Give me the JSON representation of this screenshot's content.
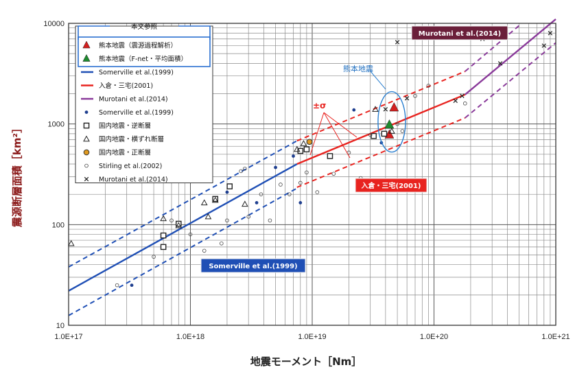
{
  "chart_data": {
    "type": "scatter",
    "xlabel": "地震モーメント［Nm］",
    "ylabel": "震源断層面積［km²］",
    "xscale": "log",
    "yscale": "log",
    "xlim": [
      1e+17,
      1e+21
    ],
    "ylim": [
      10,
      10000
    ],
    "xticks": [
      "1.0E+17",
      "1.0E+18",
      "1.0E+19",
      "1.0E+20",
      "1.0E+21"
    ],
    "yticks": [
      "10",
      "100",
      "1000",
      "10000"
    ],
    "grid": true,
    "legend_position": "top-left",
    "legend_title": "本文参照",
    "legend": [
      {
        "key": "kumamoto_a",
        "label": "熊本地震（震源過程解析）",
        "kind": "triangle",
        "color": "#d42020"
      },
      {
        "key": "kumamoto_b",
        "label": "熊本地震（F-net・平均面積）",
        "kind": "triangle",
        "color": "#1e8a2e"
      },
      {
        "key": "somerville_line",
        "label": "Somerville et al.(1999)",
        "kind": "line",
        "color": "#1f4fb5"
      },
      {
        "key": "irikura_line",
        "label": "入倉・三宅(2001)",
        "kind": "line",
        "color": "#e8231f"
      },
      {
        "key": "murotani_line",
        "label": "Murotani et al.(2014)",
        "kind": "line",
        "color": "#8a3a9a"
      },
      {
        "key": "somerville_pts",
        "label": "Somerville et al.(1999)",
        "kind": "dot",
        "color": "#1f3f8f"
      },
      {
        "key": "reverse",
        "label": "国内地震・逆断層",
        "kind": "square",
        "color": "#222222"
      },
      {
        "key": "strike",
        "label": "国内地震・横ずれ断層",
        "kind": "opentri",
        "color": "#222222"
      },
      {
        "key": "normal",
        "label": "国内地震・正断層",
        "kind": "orangecircle",
        "color": "#e09a20"
      },
      {
        "key": "stirling",
        "label": "Stirling et al.(2002)",
        "kind": "opencircle",
        "color": "#444444"
      },
      {
        "key": "murotani_pts",
        "label": "Murotani et al.(2014)",
        "kind": "cross",
        "color": "#222222"
      }
    ],
    "annotations": {
      "murotani": "Murotani et al.(2014)",
      "irikura": "入倉・三宅(2001)",
      "somerville": "Somerville et al.(1999)",
      "kumamoto": "熊本地震",
      "sigma": "±σ"
    },
    "lines": [
      {
        "name": "Somerville et al.(1999)",
        "color": "#1f4fb5",
        "style": "solid",
        "x": [
          1e+17,
          7.5e+18
        ],
        "y": [
          22,
          400
        ]
      },
      {
        "name": "Somerville +σ",
        "color": "#1f4fb5",
        "style": "dashed",
        "x": [
          1e+17,
          7.5e+18
        ],
        "y": [
          38,
          680
        ]
      },
      {
        "name": "Somerville -σ",
        "color": "#1f4fb5",
        "style": "dashed",
        "x": [
          1e+17,
          7.5e+18
        ],
        "y": [
          12.5,
          230
        ]
      },
      {
        "name": "入倉・三宅(2001)",
        "color": "#e8231f",
        "style": "solid",
        "x": [
          7.5e+18,
          1.8e+20
        ],
        "y": [
          400,
          1960
        ]
      },
      {
        "name": "入倉・三宅 +σ",
        "color": "#e8231f",
        "style": "dashed",
        "x": [
          7.5e+18,
          1.8e+20
        ],
        "y": [
          680,
          3330
        ]
      },
      {
        "name": "入倉・三宅 -σ",
        "color": "#e8231f",
        "style": "dashed",
        "x": [
          7.5e+18,
          1.8e+20
        ],
        "y": [
          235,
          1150
        ]
      },
      {
        "name": "Murotani et al.(2014)",
        "color": "#8a3a9a",
        "style": "solid",
        "x": [
          1.8e+20,
          1e+21
        ],
        "y": [
          1960,
          11000
        ]
      },
      {
        "name": "Murotani +σ",
        "color": "#8a3a9a",
        "style": "dashed",
        "x": [
          1.8e+20,
          5e+20
        ],
        "y": [
          3330,
          9500
        ]
      },
      {
        "name": "Murotani -σ",
        "color": "#8a3a9a",
        "style": "dashed",
        "x": [
          1.8e+20,
          1e+21
        ],
        "y": [
          1150,
          6400
        ]
      }
    ],
    "series": [
      {
        "name": "熊本地震（震源過程解析）",
        "marker": "triangle",
        "color": "#d42020",
        "x": [
          4.7e+19,
          4.3e+19
        ],
        "y": [
          1450,
          780
        ]
      },
      {
        "name": "熊本地震（F-net・平均面積）",
        "marker": "triangle",
        "color": "#1e8a2e",
        "x": [
          4.3e+19
        ],
        "y": [
          980
        ]
      },
      {
        "name": "Somerville et al.(1999)",
        "marker": "dot",
        "color": "#1f3f8f",
        "x": [
          3.3e+17,
          5e+18,
          3.5e+18,
          8e+18,
          2.2e+19,
          3.7e+19,
          2e+18,
          7e+18
        ],
        "y": [
          25,
          370,
          165,
          165,
          1380,
          650,
          210,
          480
        ]
      },
      {
        "name": "国内地震・逆断層",
        "marker": "square",
        "color": "#222222",
        "x": [
          6e+17,
          6e+17,
          8e+17,
          1.6e+18,
          2.1e+18,
          8e+18,
          9e+18,
          1.4e+19,
          3.2e+19,
          3.9e+19
        ],
        "y": [
          60,
          78,
          102,
          180,
          240,
          540,
          560,
          480,
          760,
          800
        ]
      },
      {
        "name": "国内地震・横ずれ断層",
        "marker": "opentri",
        "color": "#222222",
        "x": [
          1.05e+17,
          6e+17,
          8e+17,
          1.3e+18,
          1.4e+18,
          1.6e+18,
          2.8e+18,
          7.5e+18,
          8.5e+18,
          3.3e+19,
          4.5e+19
        ],
        "y": [
          65,
          115,
          98,
          165,
          120,
          175,
          160,
          560,
          640,
          1400,
          850
        ]
      },
      {
        "name": "国内地震・正断層",
        "marker": "orangecircle",
        "color": "#e09a20",
        "x": [
          9.5e+18
        ],
        "y": [
          665
        ]
      },
      {
        "name": "Stirling et al.(2002)",
        "marker": "opencircle",
        "color": "#444444",
        "x": [
          2.5e+17,
          5e+17,
          7e+17,
          1e+18,
          1.3e+18,
          1.8e+18,
          2e+18,
          2.6e+18,
          3e+18,
          3.8e+18,
          4.5e+18,
          5.5e+18,
          6.5e+18,
          8e+18,
          9e+18,
          1.1e+19,
          1.5e+19,
          2e+19,
          2.5e+19,
          3e+19,
          5e+19,
          5.5e+19,
          7e+19,
          9e+19,
          1.8e+20,
          2.8e+18
        ],
        "y": [
          25,
          48,
          110,
          80,
          55,
          65,
          110,
          340,
          120,
          200,
          110,
          250,
          200,
          260,
          330,
          210,
          320,
          520,
          290,
          780,
          1000,
          850,
          1900,
          2400,
          1600,
          360
        ]
      },
      {
        "name": "Murotani et al.(2014)",
        "marker": "cross",
        "color": "#222222",
        "x": [
          5e+19,
          1.5e+20,
          1.7e+20,
          2.5e+20,
          3.5e+20,
          8e+20,
          9e+20,
          6e+19,
          4e+19
        ],
        "y": [
          6500,
          1700,
          1900,
          7000,
          4000,
          6000,
          8000,
          1800,
          1400
        ]
      }
    ]
  }
}
